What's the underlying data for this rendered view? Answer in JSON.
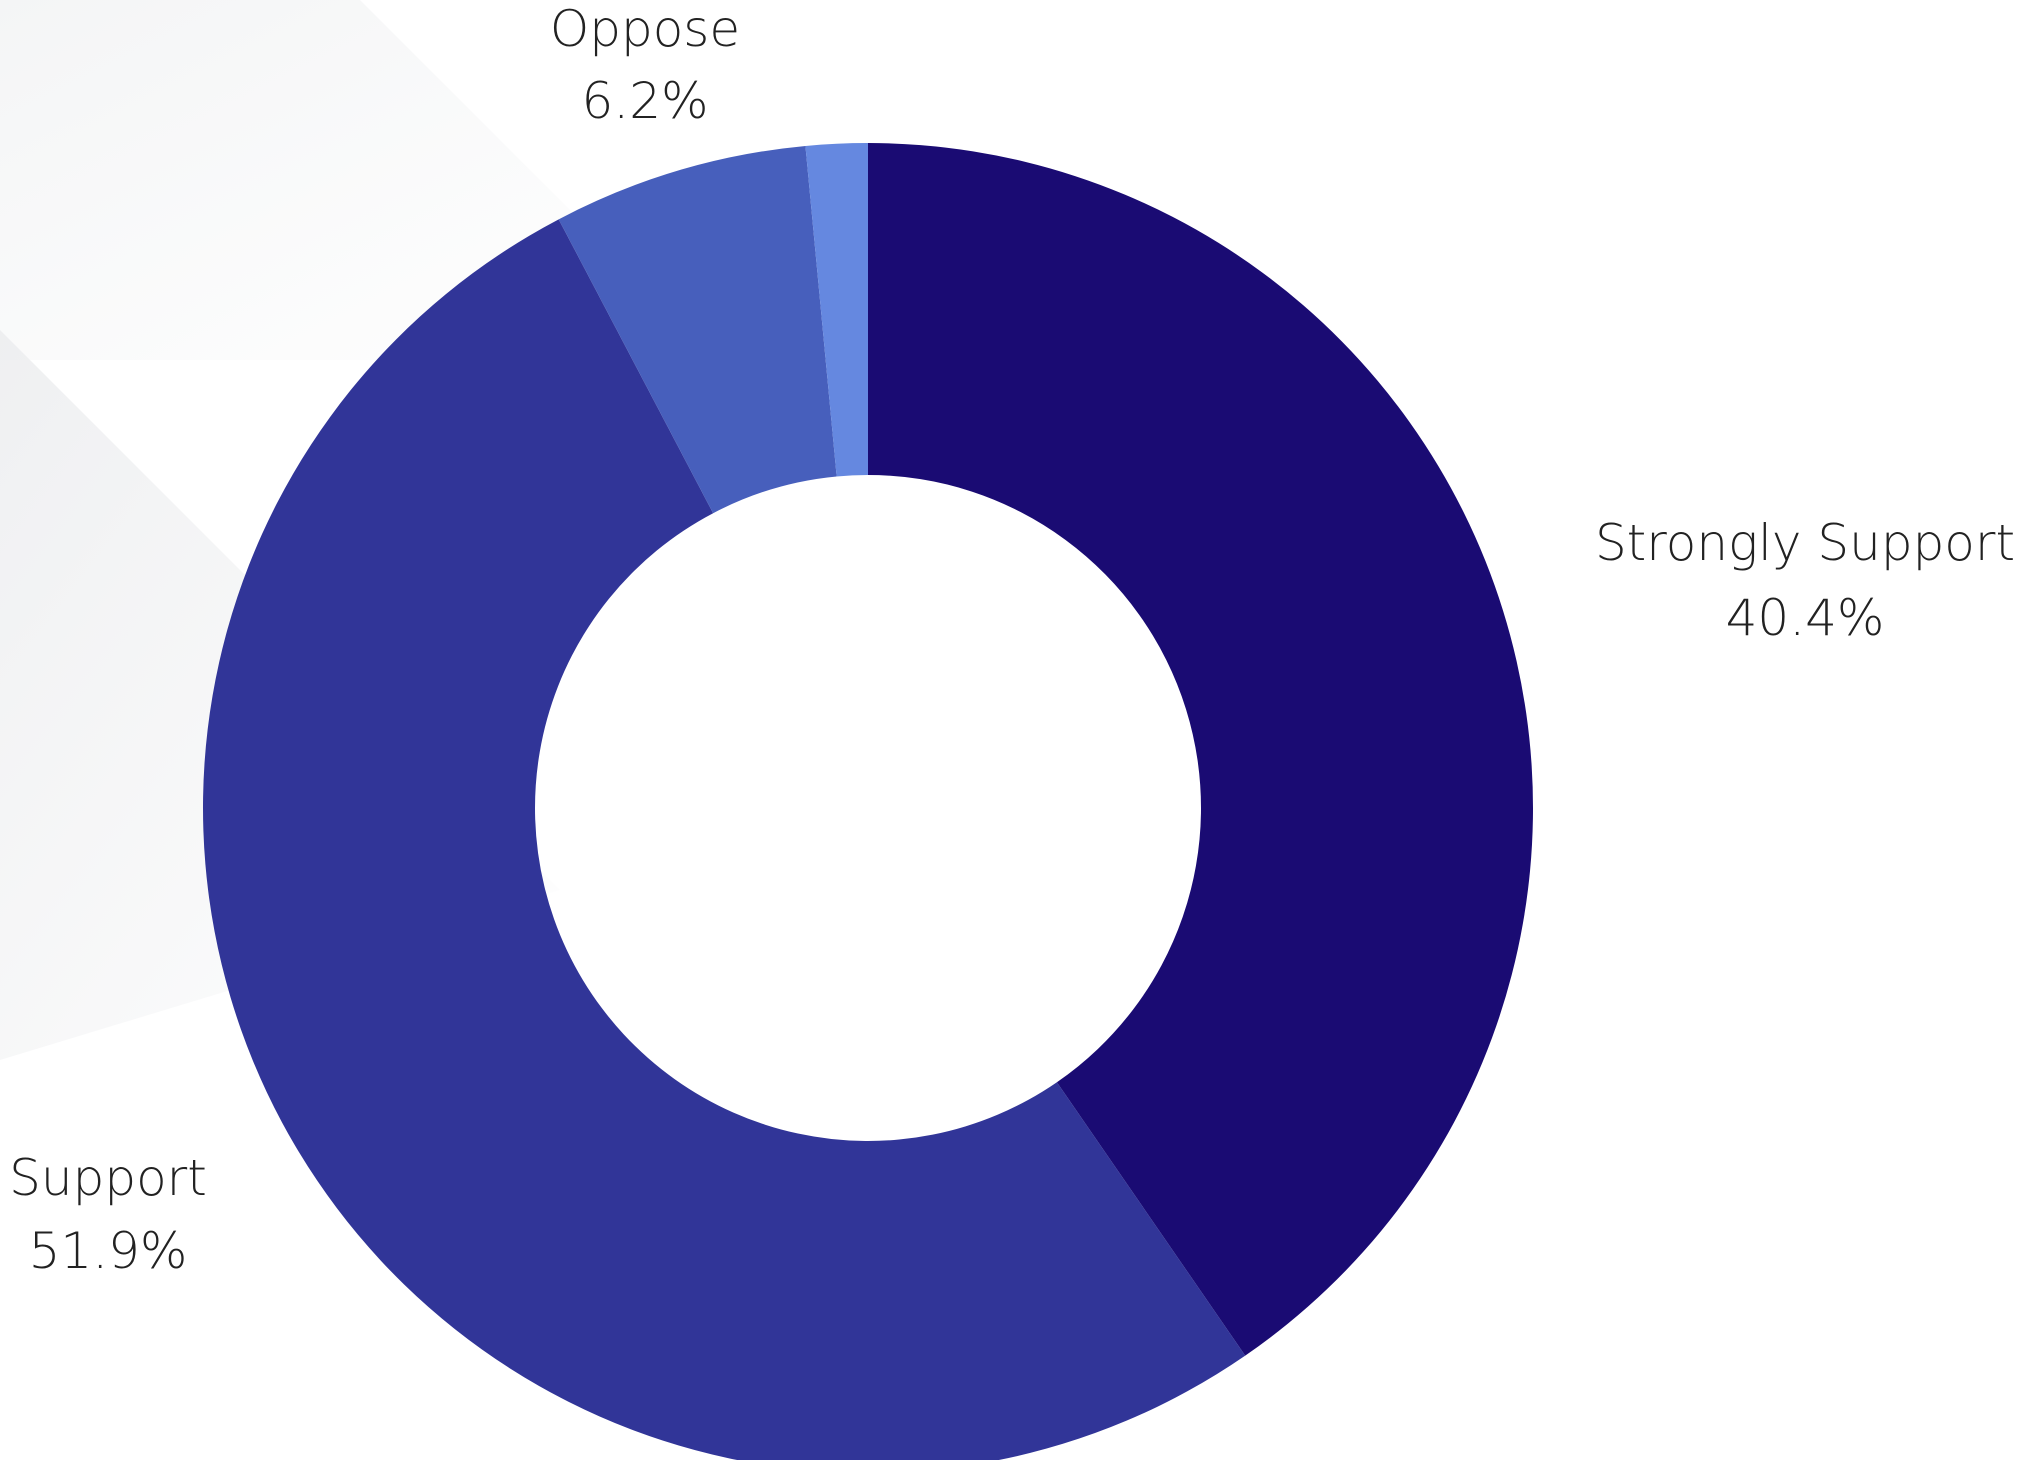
{
  "chart_data": {
    "type": "pie",
    "variant": "donut",
    "title": "",
    "slices": [
      {
        "label": "Strongly Support",
        "value": 40.4,
        "value_label": "40.4%",
        "color": "#1a0b73"
      },
      {
        "label": "Support",
        "value": 51.9,
        "value_label": "51.9%",
        "color": "#313598"
      },
      {
        "label": "Oppose",
        "value": 6.2,
        "value_label": "6.2%",
        "color": "#475fbc"
      },
      {
        "label": "",
        "value": 1.5,
        "value_label": "",
        "color": "#6588e0"
      }
    ],
    "legend": "none",
    "grid": false
  },
  "colors": {
    "background": "#ffffff",
    "label_text": "#222222"
  }
}
